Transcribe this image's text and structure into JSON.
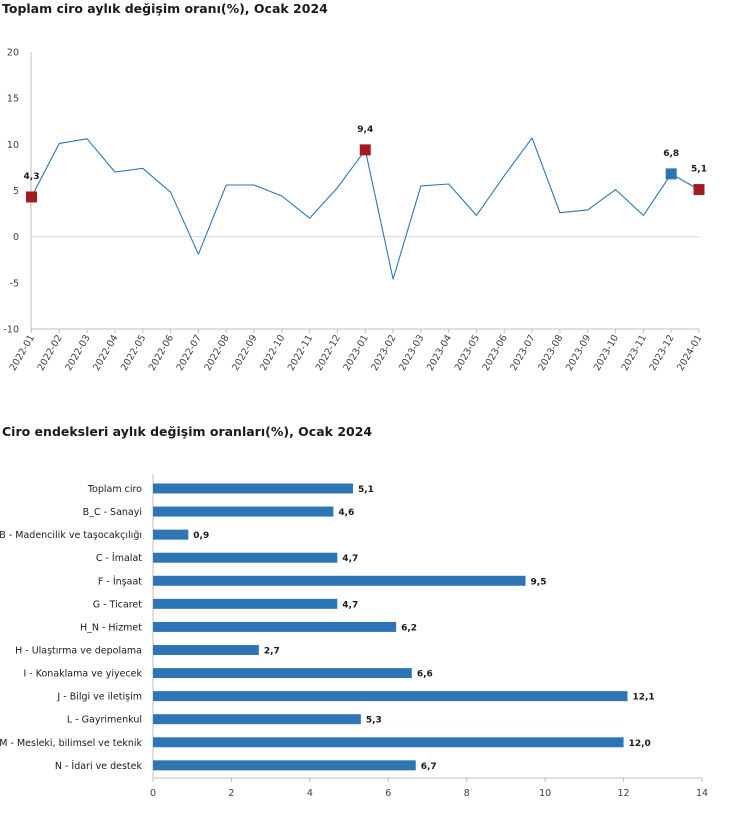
{
  "chart_data": [
    {
      "type": "line",
      "title": "Toplam ciro aylık değişim oranı(%), Ocak 2024",
      "xlabel": "",
      "ylabel": "",
      "ylim": [
        -10,
        20
      ],
      "yticks": [
        "-10",
        "-5",
        "0",
        "5",
        "10",
        "15",
        "20"
      ],
      "grid": false,
      "line_color": "#2e75b6",
      "categories": [
        "2022-01",
        "2022-02",
        "2022-03",
        "2022-04",
        "2022-05",
        "2022-06",
        "2022-07",
        "2022-08",
        "2022-09",
        "2022-10",
        "2022-11",
        "2022-12",
        "2023-01",
        "2023-02",
        "2023-03",
        "2023-04",
        "2023-05",
        "2023-06",
        "2023-07",
        "2023-08",
        "2023-09",
        "2023-10",
        "2023-11",
        "2023-12",
        "2024-01"
      ],
      "values": [
        4.3,
        10.1,
        10.6,
        7.0,
        7.4,
        4.8,
        -1.9,
        5.6,
        5.6,
        4.4,
        2.0,
        5.3,
        9.4,
        -4.6,
        5.5,
        5.7,
        2.3,
        6.6,
        10.7,
        2.6,
        2.9,
        5.1,
        2.3,
        6.8,
        5.1
      ],
      "highlighted": [
        {
          "index": 0,
          "label": "4,3",
          "color": "#a31b1f"
        },
        {
          "index": 12,
          "label": "9,4",
          "color": "#a31b1f"
        },
        {
          "index": 23,
          "label": "6,8",
          "color": "#2e75b6"
        },
        {
          "index": 24,
          "label": "5,1",
          "color": "#a31b1f"
        }
      ]
    },
    {
      "type": "bar",
      "orientation": "horizontal",
      "title": "Ciro endeksleri aylık değişim oranları(%), Ocak 2024",
      "xlabel": "",
      "ylabel": "",
      "xlim": [
        0,
        14
      ],
      "xticks": [
        "0",
        "2",
        "4",
        "6",
        "8",
        "10",
        "12",
        "14"
      ],
      "grid": false,
      "bar_color": "#2e75b6",
      "categories": [
        "Toplam ciro",
        "B_C - Sanayi",
        "B - Madencilik ve taşocakçılığı",
        "C - İmalat",
        "F - İnşaat",
        "G - Ticaret",
        "H_N - Hizmet",
        "H - Ulaştırma ve depolama",
        "I - Konaklama ve yiyecek",
        "J - Bilgi ve iletişim",
        "L - Gayrimenkul",
        "M - Mesleki, bilimsel ve teknik",
        "N - İdari ve destek"
      ],
      "values": [
        5.1,
        4.6,
        0.9,
        4.7,
        9.5,
        4.7,
        6.2,
        2.7,
        6.6,
        12.1,
        5.3,
        12.0,
        6.7
      ],
      "value_labels": [
        "5,1",
        "4,6",
        "0,9",
        "4,7",
        "9,5",
        "4,7",
        "6,2",
        "2,7",
        "6,6",
        "12,1",
        "5,3",
        "12,0",
        "6,7"
      ]
    }
  ]
}
